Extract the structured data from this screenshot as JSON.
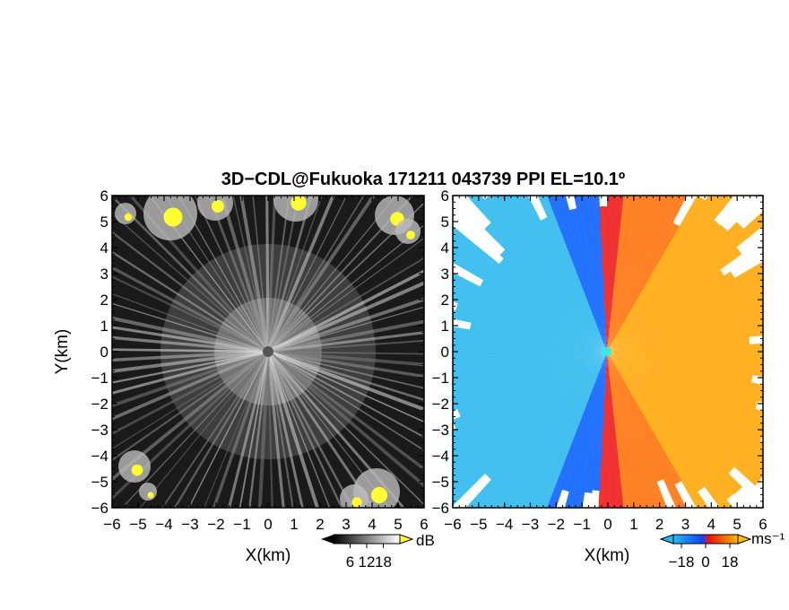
{
  "title": "3D−CDL@Fukuoka 171211 043739 PPI EL=10.1º",
  "chart_data": [
    {
      "type": "heatmap",
      "panel": "reflectivity",
      "xlabel": "X(km)",
      "ylabel": "Y(km)",
      "xlim": [
        -6,
        6
      ],
      "ylim": [
        -6,
        6
      ],
      "x_ticks": [
        "−6",
        "−5",
        "−4",
        "−3",
        "−2",
        "−1",
        "0",
        "1",
        "2",
        "3",
        "4",
        "5",
        "6"
      ],
      "y_ticks": [
        "−6",
        "−5",
        "−4",
        "−3",
        "−2",
        "−1",
        "0",
        "1",
        "2",
        "3",
        "4",
        "5",
        "6"
      ],
      "colorbar": {
        "unit": "dB",
        "ticks": [
          "6",
          "12",
          "18"
        ],
        "range": [
          0,
          24
        ],
        "colors": [
          "#000000",
          "#ffffff"
        ],
        "over_color": "#ffff33"
      }
    },
    {
      "type": "heatmap",
      "panel": "doppler velocity",
      "xlabel": "X(km)",
      "ylabel": "",
      "xlim": [
        -6,
        6
      ],
      "ylim": [
        -6,
        6
      ],
      "x_ticks": [
        "−6",
        "−5",
        "−4",
        "−3",
        "−2",
        "−1",
        "0",
        "1",
        "2",
        "3",
        "4",
        "5",
        "6"
      ],
      "y_ticks": [
        "−6",
        "−5",
        "−4",
        "−3",
        "−2",
        "−1",
        "0",
        "1",
        "2",
        "3",
        "4",
        "5",
        "6"
      ],
      "colorbar": {
        "unit": "ms⁻¹",
        "ticks": [
          "−18",
          "0",
          "18"
        ],
        "range": [
          -24,
          24
        ],
        "colors": [
          "#22bbee",
          "#1144ff",
          "#ee1111",
          "#ffbb00"
        ]
      }
    }
  ]
}
